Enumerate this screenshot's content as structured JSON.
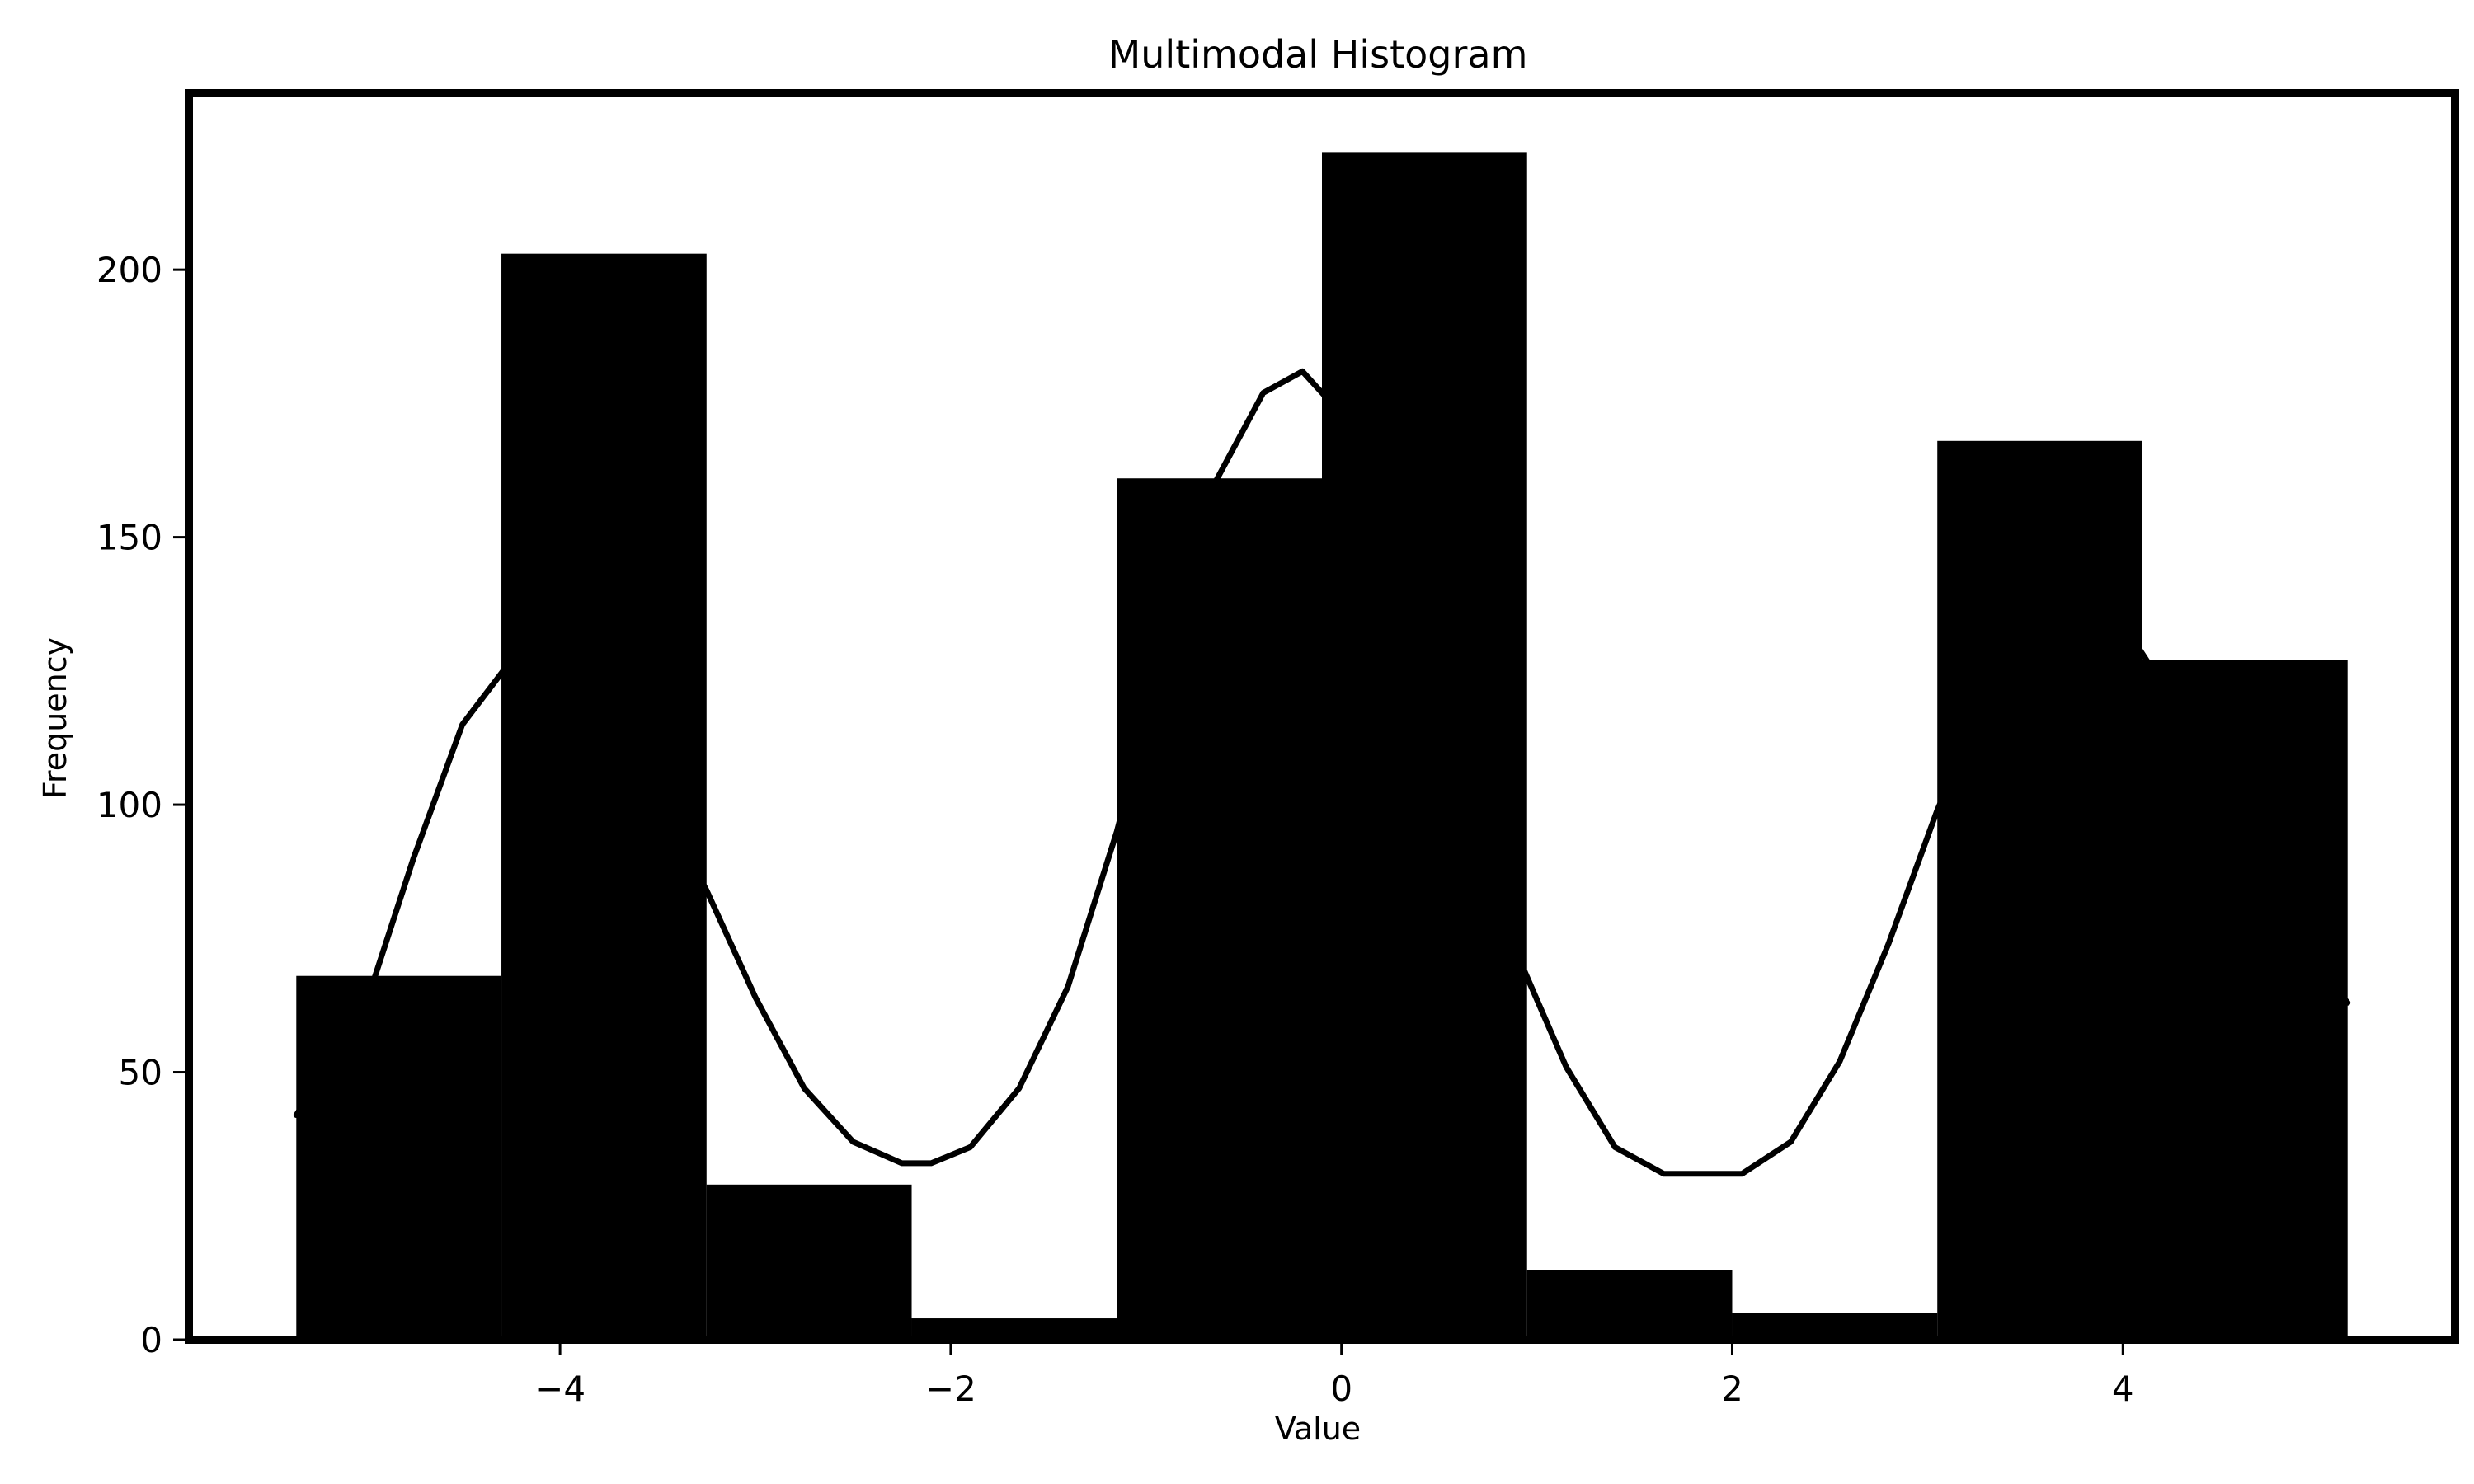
{
  "chart_data": {
    "type": "bar",
    "title": "Multimodal Histogram",
    "xlabel": "Value",
    "ylabel": "Frequency",
    "xlim": [
      -5.9,
      5.7
    ],
    "ylim": [
      0,
      233
    ],
    "x_ticks": [
      -4,
      -2,
      0,
      2,
      4
    ],
    "x_tick_labels": [
      "−4",
      "−2",
      "0",
      "2",
      "4"
    ],
    "y_ticks": [
      0,
      50,
      100,
      150,
      200
    ],
    "y_tick_labels": [
      "0",
      "50",
      "100",
      "150",
      "200"
    ],
    "grid": false,
    "legend": null,
    "bins": [
      {
        "start": -5.35,
        "end": -4.3,
        "count": 68
      },
      {
        "start": -4.3,
        "end": -3.25,
        "count": 203
      },
      {
        "start": -3.25,
        "end": -2.2,
        "count": 29
      },
      {
        "start": -2.2,
        "end": -1.15,
        "count": 4
      },
      {
        "start": -1.15,
        "end": -0.1,
        "count": 161
      },
      {
        "start": -0.1,
        "end": 0.95,
        "count": 222
      },
      {
        "start": 0.95,
        "end": 2.0,
        "count": 13
      },
      {
        "start": 2.0,
        "end": 3.05,
        "count": 5
      },
      {
        "start": 3.05,
        "end": 4.1,
        "count": 168
      },
      {
        "start": 4.1,
        "end": 5.15,
        "count": 127
      }
    ],
    "curve": {
      "x": [
        -5.35,
        -5.0,
        -4.75,
        -4.5,
        -4.25,
        -4.0,
        -3.75,
        -3.5,
        -3.25,
        -3.0,
        -2.75,
        -2.5,
        -2.25,
        -2.1,
        -1.9,
        -1.65,
        -1.4,
        -1.15,
        -0.9,
        -0.65,
        -0.4,
        -0.2,
        0.0,
        0.2,
        0.4,
        0.65,
        0.9,
        1.15,
        1.4,
        1.65,
        1.9,
        2.05,
        2.3,
        2.55,
        2.8,
        3.05,
        3.3,
        3.55,
        3.8,
        4.05,
        4.3,
        4.55,
        4.8,
        5.15
      ],
      "y": [
        42,
        62,
        90,
        115,
        127,
        126,
        116,
        101,
        84,
        64,
        47,
        37,
        33,
        33,
        36,
        47,
        66,
        95,
        130,
        160,
        177,
        181,
        173,
        153,
        124,
        98,
        72,
        51,
        36,
        31,
        31,
        31,
        37,
        52,
        74,
        99,
        120,
        133,
        136,
        131,
        117,
        96,
        78,
        63
      ]
    },
    "colors": {
      "bar_fill": "#000000",
      "curve": "#000000",
      "frame": "#000000",
      "background": "#ffffff"
    }
  }
}
